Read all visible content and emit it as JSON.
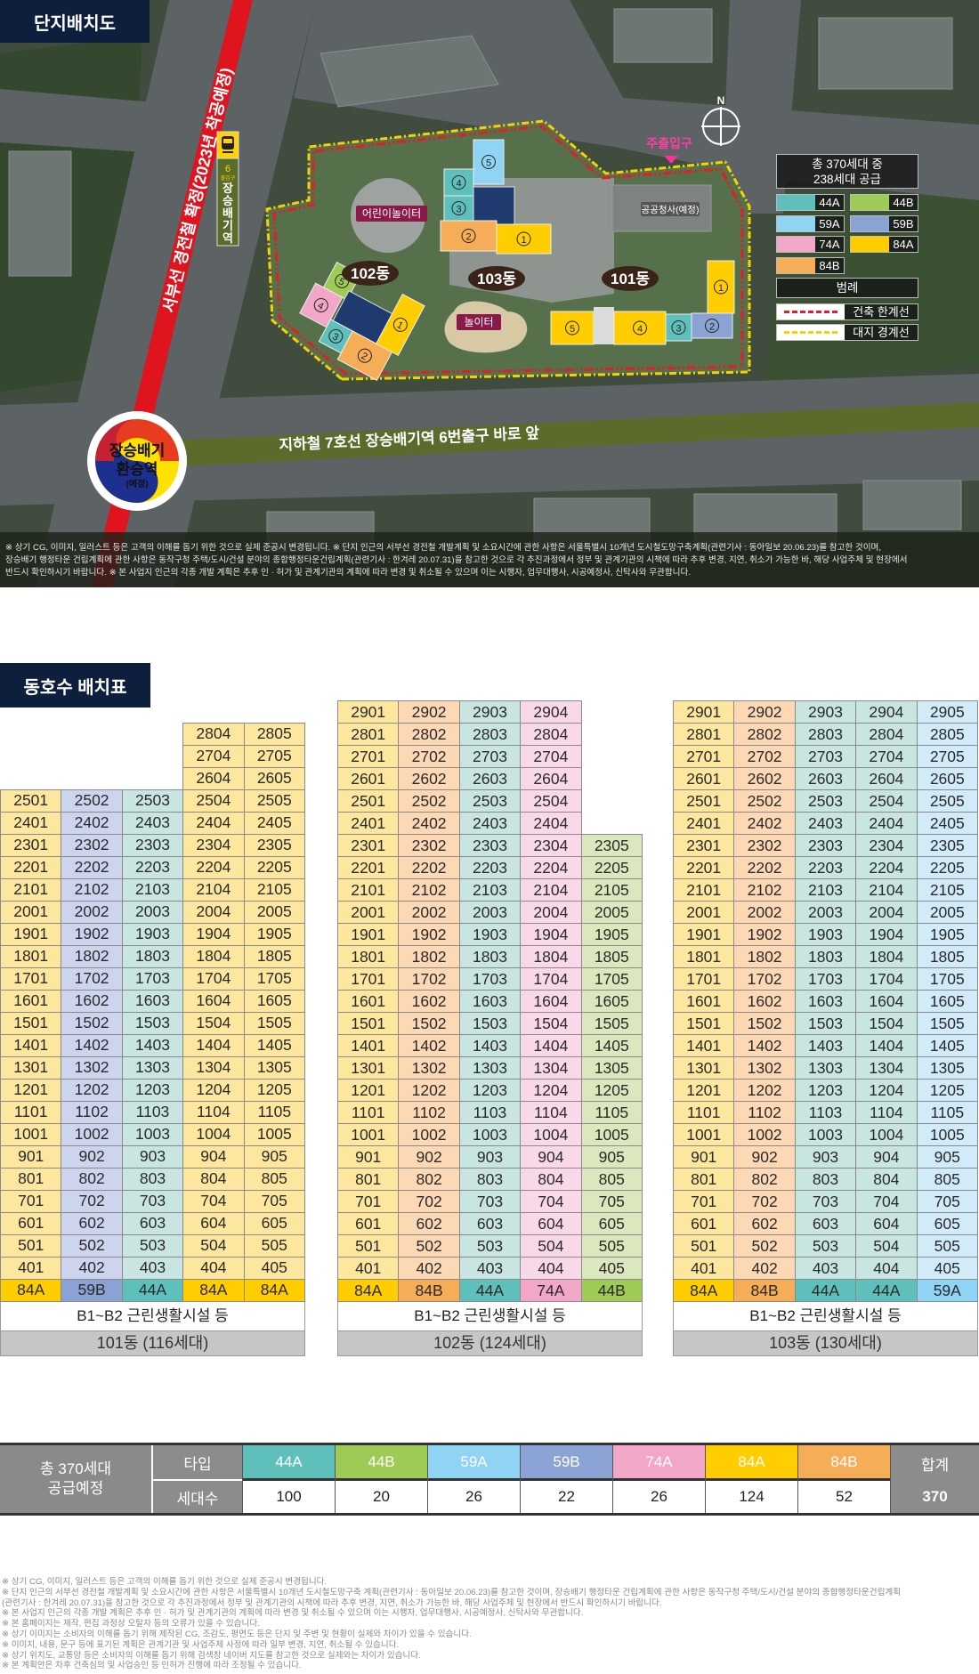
{
  "colors": {
    "44A": {
      "full": "#5fc0bb",
      "light": "#c8e5e2"
    },
    "44B": {
      "full": "#9ecb55",
      "light": "#dbe7bd"
    },
    "59A": {
      "full": "#8fd3f5",
      "light": "#d1ebf8"
    },
    "59B": {
      "full": "#8ba2d4",
      "light": "#cdd4ee"
    },
    "74A": {
      "full": "#f2a7c9",
      "light": "#f9d9e9"
    },
    "84A": {
      "full": "#ffcd00",
      "light": "#fde79f"
    },
    "84B": {
      "full": "#f6ad57",
      "light": "#fcd8b4"
    }
  },
  "map": {
    "section_title": "단지배치도",
    "rail_label": "서부선 경전철 확정(2023년 착공예정)",
    "station_sign": {
      "icon": "train-icon",
      "exit_number": "6",
      "exit_label": "출입구",
      "station_name": "장승배기역"
    },
    "transfer_badge": {
      "line1": "장승배기",
      "line2": "환승역",
      "line3": "(예정)"
    },
    "subway_banner": "지하철 7호선 장승배기역 6번출구 바로 앞",
    "compass": "N",
    "amenities": {
      "kids_playground": "어린이놀이터",
      "playground": "놀이터",
      "public_office": "공공청사(예정)",
      "main_entrance": "주출입구"
    },
    "buildings": [
      {
        "name": "101동",
        "units": [
          {
            "no": "1",
            "type": "84A"
          },
          {
            "no": "2",
            "type": "59B"
          },
          {
            "no": "3",
            "type": "44A"
          },
          {
            "no": "4",
            "type": "84A"
          },
          {
            "no": "5",
            "type": "84A"
          }
        ]
      },
      {
        "name": "102동",
        "units": [
          {
            "no": "1",
            "type": "84A"
          },
          {
            "no": "2",
            "type": "84B"
          },
          {
            "no": "3",
            "type": "44A"
          },
          {
            "no": "4",
            "type": "74A"
          },
          {
            "no": "5",
            "type": "44B"
          }
        ]
      },
      {
        "name": "103동",
        "units": [
          {
            "no": "1",
            "type": "84A"
          },
          {
            "no": "2",
            "type": "84B"
          },
          {
            "no": "3",
            "type": "44A"
          },
          {
            "no": "4",
            "type": "44A"
          },
          {
            "no": "5",
            "type": "59A"
          }
        ]
      }
    ],
    "legend": {
      "title_line1": "총 370세대 중",
      "title_line2": "238세대 공급",
      "types": [
        "44A",
        "44B",
        "59A",
        "59B",
        "74A",
        "84A",
        "84B"
      ],
      "legend_title": "범례",
      "lines": [
        {
          "label": "건축 한계선",
          "color": "#e31e24"
        },
        {
          "label": "대지 경계선",
          "color": "#f5d200"
        }
      ]
    },
    "notice": [
      "※ 상기 CG, 이미지, 일러스트 등은 고객의 이해를 돕기 위한 것으로 실제 준공시 변경됩니다. ※ 단지 인근의 서부선 경전철 개발계획 및 소요시간에 관한 사항은 서울특별시 10개년 도시철도망구축계획(관련기사 : 동아일보 20.06.23)를 참고한 것이며,",
      "장승배기 행정타운 건립계획에 관한 사항은 동작구청 주택/도시/건설 분야의 종합행정타운건립계획(관련기사 : 한겨레 20.07.31)을 참고한 것으로 각 추진과정에서 정부 및 관계기관의 시책에 따라 추후 변경, 지연, 취소가 가능한 바, 해당 사업주체 및 현장에서",
      "반드시 확인하시기 바랍니다. ※ 본 사업지 인근의 각종 개발 계획은 추후 인 · 허가 및 관계기관의 계획에 따라 변경 및 취소될 수 있으며 이는 시행자, 업무대행사, 시공예정사, 신탁사와 무관합니다."
    ]
  },
  "layout_table": {
    "section_title": "동호수 배치표",
    "buildings": [
      {
        "label": "101동 (116세대)",
        "facility": "B1~B2 근린생활시설 등",
        "types": [
          "84A",
          "59B",
          "44A",
          "84A",
          "84A"
        ],
        "rows": [
          [
            "",
            "",
            "",
            "",
            ""
          ],
          [
            "",
            "",
            "",
            "2804",
            "2805"
          ],
          [
            "",
            "",
            "",
            "2704",
            "2705"
          ],
          [
            "",
            "",
            "",
            "2604",
            "2605"
          ],
          [
            "2501",
            "2502",
            "2503",
            "2504",
            "2505"
          ],
          [
            "2401",
            "2402",
            "2403",
            "2404",
            "2405"
          ],
          [
            "2301",
            "2302",
            "2303",
            "2304",
            "2305"
          ],
          [
            "2201",
            "2202",
            "2203",
            "2204",
            "2205"
          ],
          [
            "2101",
            "2102",
            "2103",
            "2104",
            "2105"
          ],
          [
            "2001",
            "2002",
            "2003",
            "2004",
            "2005"
          ],
          [
            "1901",
            "1902",
            "1903",
            "1904",
            "1905"
          ],
          [
            "1801",
            "1802",
            "1803",
            "1804",
            "1805"
          ],
          [
            "1701",
            "1702",
            "1703",
            "1704",
            "1705"
          ],
          [
            "1601",
            "1602",
            "1603",
            "1604",
            "1605"
          ],
          [
            "1501",
            "1502",
            "1503",
            "1504",
            "1505"
          ],
          [
            "1401",
            "1402",
            "1403",
            "1404",
            "1405"
          ],
          [
            "1301",
            "1302",
            "1303",
            "1304",
            "1305"
          ],
          [
            "1201",
            "1202",
            "1203",
            "1204",
            "1205"
          ],
          [
            "1101",
            "1102",
            "1103",
            "1104",
            "1105"
          ],
          [
            "1001",
            "1002",
            "1003",
            "1004",
            "1005"
          ],
          [
            "901",
            "902",
            "903",
            "904",
            "905"
          ],
          [
            "801",
            "802",
            "803",
            "804",
            "805"
          ],
          [
            "701",
            "702",
            "703",
            "704",
            "705"
          ],
          [
            "601",
            "602",
            "603",
            "604",
            "605"
          ],
          [
            "501",
            "502",
            "503",
            "504",
            "505"
          ],
          [
            "401",
            "402",
            "403",
            "404",
            "405"
          ]
        ]
      },
      {
        "label": "102동 (124세대)",
        "facility": "B1~B2 근린생활시설 등",
        "types": [
          "84A",
          "84B",
          "44A",
          "74A",
          "44B"
        ],
        "rows": [
          [
            "2901",
            "2902",
            "2903",
            "2904",
            ""
          ],
          [
            "2801",
            "2802",
            "2803",
            "2804",
            ""
          ],
          [
            "2701",
            "2702",
            "2703",
            "2704",
            ""
          ],
          [
            "2601",
            "2602",
            "2603",
            "2604",
            ""
          ],
          [
            "2501",
            "2502",
            "2503",
            "2504",
            ""
          ],
          [
            "2401",
            "2402",
            "2403",
            "2404",
            ""
          ],
          [
            "2301",
            "2302",
            "2303",
            "2304",
            "2305"
          ],
          [
            "2201",
            "2202",
            "2203",
            "2204",
            "2205"
          ],
          [
            "2101",
            "2102",
            "2103",
            "2104",
            "2105"
          ],
          [
            "2001",
            "2002",
            "2003",
            "2004",
            "2005"
          ],
          [
            "1901",
            "1902",
            "1903",
            "1904",
            "1905"
          ],
          [
            "1801",
            "1802",
            "1803",
            "1804",
            "1805"
          ],
          [
            "1701",
            "1702",
            "1703",
            "1704",
            "1705"
          ],
          [
            "1601",
            "1602",
            "1603",
            "1604",
            "1605"
          ],
          [
            "1501",
            "1502",
            "1503",
            "1504",
            "1505"
          ],
          [
            "1401",
            "1402",
            "1403",
            "1404",
            "1405"
          ],
          [
            "1301",
            "1302",
            "1303",
            "1304",
            "1305"
          ],
          [
            "1201",
            "1202",
            "1203",
            "1204",
            "1205"
          ],
          [
            "1101",
            "1102",
            "1103",
            "1104",
            "1105"
          ],
          [
            "1001",
            "1002",
            "1003",
            "1004",
            "1005"
          ],
          [
            "901",
            "902",
            "903",
            "904",
            "905"
          ],
          [
            "801",
            "802",
            "803",
            "804",
            "805"
          ],
          [
            "701",
            "702",
            "703",
            "704",
            "705"
          ],
          [
            "601",
            "602",
            "603",
            "604",
            "605"
          ],
          [
            "501",
            "502",
            "503",
            "504",
            "505"
          ],
          [
            "401",
            "402",
            "403",
            "404",
            "405"
          ]
        ]
      },
      {
        "label": "103동 (130세대)",
        "facility": "B1~B2 근린생활시설 등",
        "types": [
          "84A",
          "84B",
          "44A",
          "44A",
          "59A"
        ],
        "rows": [
          [
            "2901",
            "2902",
            "2903",
            "2904",
            "2905"
          ],
          [
            "2801",
            "2802",
            "2803",
            "2804",
            "2805"
          ],
          [
            "2701",
            "2702",
            "2703",
            "2704",
            "2705"
          ],
          [
            "2601",
            "2602",
            "2603",
            "2604",
            "2605"
          ],
          [
            "2501",
            "2502",
            "2503",
            "2504",
            "2505"
          ],
          [
            "2401",
            "2402",
            "2403",
            "2404",
            "2405"
          ],
          [
            "2301",
            "2302",
            "2303",
            "2304",
            "2305"
          ],
          [
            "2201",
            "2202",
            "2203",
            "2204",
            "2205"
          ],
          [
            "2101",
            "2102",
            "2103",
            "2104",
            "2105"
          ],
          [
            "2001",
            "2002",
            "2003",
            "2004",
            "2005"
          ],
          [
            "1901",
            "1902",
            "1903",
            "1904",
            "1905"
          ],
          [
            "1801",
            "1802",
            "1803",
            "1804",
            "1805"
          ],
          [
            "1701",
            "1702",
            "1703",
            "1704",
            "1705"
          ],
          [
            "1601",
            "1602",
            "1603",
            "1604",
            "1605"
          ],
          [
            "1501",
            "1502",
            "1503",
            "1504",
            "1505"
          ],
          [
            "1401",
            "1402",
            "1403",
            "1404",
            "1405"
          ],
          [
            "1301",
            "1302",
            "1303",
            "1304",
            "1305"
          ],
          [
            "1201",
            "1202",
            "1203",
            "1204",
            "1205"
          ],
          [
            "1101",
            "1102",
            "1103",
            "1104",
            "1105"
          ],
          [
            "1001",
            "1002",
            "1003",
            "1004",
            "1005"
          ],
          [
            "901",
            "902",
            "903",
            "904",
            "905"
          ],
          [
            "801",
            "802",
            "803",
            "804",
            "805"
          ],
          [
            "701",
            "702",
            "703",
            "704",
            "705"
          ],
          [
            "601",
            "602",
            "603",
            "604",
            "605"
          ],
          [
            "501",
            "502",
            "503",
            "504",
            "505"
          ],
          [
            "401",
            "402",
            "403",
            "404",
            "405"
          ]
        ]
      }
    ]
  },
  "summary": {
    "lead_line1": "총 370세대",
    "lead_line2": "공급예정",
    "type_header": "타입",
    "count_header": "세대수",
    "items": [
      {
        "type": "44A",
        "count": "100"
      },
      {
        "type": "44B",
        "count": "20"
      },
      {
        "type": "59A",
        "count": "26"
      },
      {
        "type": "59B",
        "count": "22"
      },
      {
        "type": "74A",
        "count": "26"
      },
      {
        "type": "84A",
        "count": "124"
      },
      {
        "type": "84B",
        "count": "52"
      }
    ],
    "total_header": "합계",
    "total": "370"
  },
  "footnotes": [
    "※ 상기 CG, 이미지, 일러스트 등은 고객의 이해를 돕기 위한 것으로 실제 준공시 변경됩니다.",
    "※ 단지 인근의 서부선 경전철 개발계획 및 소요시간에 관한 사항은 서울특별시 10개년 도시철도망구축 계획(관련기사 : 동아일보 20.06.23)를 참고한 것이며, 장승배기 행정타운 건립계획에 관한 사항은 동작구청 주택/도시/건설 분야의 종합행정타운건립계획",
    "  (관련기사 : 한겨레 20.07.31)을 참고한 것으로 각 추진과정에서 정부 및 관계기관의 시책에 따라 추후 변경, 지연, 취소가 가능한 바, 해당 사업주체 및 현장에서 반드시 확인하시기 바랍니다.",
    "※ 본 사업지 인근의 각종 개발 계획은 추후 인 · 허가 및 관계기관의 계획에 따라 변경 및 취소될 수 있으며 이는 시행자, 업무대행사, 시공예정사, 신탁사와 무관합니다.",
    "※ 본 홈페이지는 제작, 편집 과정상 오탈자 등의 오류가 있을 수 있습니다.",
    "※ 상기 이미지는 소비자의 이해를 돕기 위해 제작된 CG, 조감도, 평면도 등은 단지 및 주변 및 현황이 실제와 차이가 있을 수 있습니다.",
    "※ 이미지, 내용, 문구 등에 표기된 계획은 관계기관 및 사업주체 사정에 따라 일부 변경, 지연, 취소될 수 있습니다.",
    "※ 상기 위치도, 교통망 등은 소비자의 이해를 돕기 위해 검색창 네이버 지도를 참고한 것으로 실제와는 차이가 있습니다.",
    "※ 본 계획안은 차후 건축심의 및 사업승인 등 인허가 진행에 따라 조정될 수 있습니다."
  ]
}
